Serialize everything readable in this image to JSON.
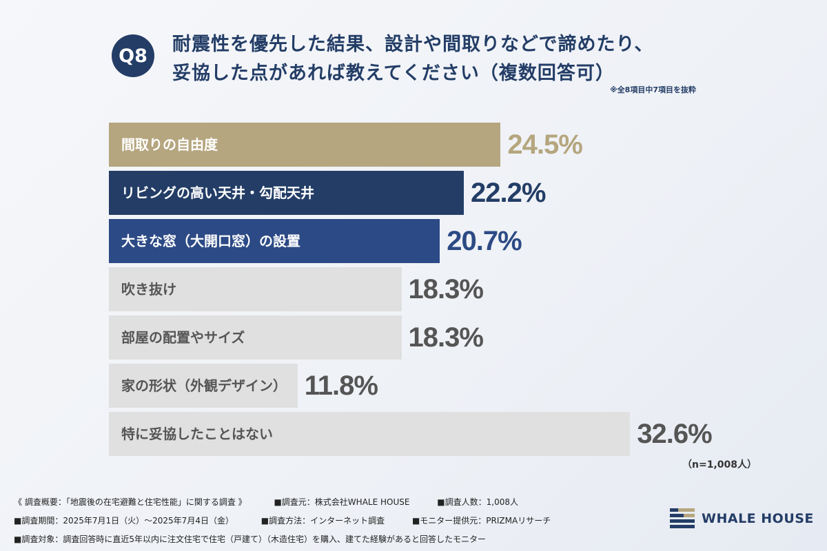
{
  "header": {
    "badge": "Q8",
    "title_line1": "耐震性を優先した結果、設計や間取りなどで諦めたり、",
    "title_line2": "妥協した点があれば教えてください（複数回答可）",
    "note": "※全8項目中7項目を抜粋"
  },
  "chart_data": {
    "type": "bar",
    "orientation": "horizontal",
    "title": "耐震性を優先した結果、設計や間取りなどで諦めたり、妥協した点があれば教えてください（複数回答可）",
    "categories": [
      "間取りの自由度",
      "リビングの高い天井・勾配天井",
      "大きな窓（大開口窓）の設置",
      "吹き抜け",
      "部屋の配置やサイズ",
      "家の形状（外観デザイン）",
      "特に妥協したことはない"
    ],
    "values": [
      24.5,
      22.2,
      20.7,
      18.3,
      18.3,
      11.8,
      32.6
    ],
    "value_labels": [
      "24.5%",
      "22.2%",
      "20.7%",
      "18.3%",
      "18.3%",
      "11.8%",
      "32.6%"
    ],
    "bar_colors": [
      "#b5a67f",
      "#233d66",
      "#2c4a85",
      "#e0e0e0",
      "#e0e0e0",
      "#e0e0e0",
      "#e0e0e0"
    ],
    "label_colors": [
      "#ffffff",
      "#ffffff",
      "#ffffff",
      "#555555",
      "#555555",
      "#555555",
      "#555555"
    ],
    "value_colors": [
      "#b5a67f",
      "#233d66",
      "#2c4a85",
      "#555555",
      "#555555",
      "#555555",
      "#555555"
    ],
    "unit": "%",
    "sample_note": "（n=1,008人）"
  },
  "footer": {
    "row1": [
      "《 調査概要：「地震後の在宅避難と住宅性能」に関する調査 》",
      "■調査元：株式会社WHALE HOUSE",
      "■調査人数：1,008人"
    ],
    "row2": [
      "■調査期間：2025年7月1日（火）〜2025年7月4日（金）",
      "■調査方法：インターネット調査",
      "■モニター提供元：PRIZMAリサーチ"
    ],
    "row3": [
      "■調査対象：調査回答時に直近5年以内に注文住宅で住宅（戸建て）（木造住宅）を購入、建てた経験があると回答したモニター"
    ]
  },
  "logo": {
    "text": "WHALE HOUSE"
  }
}
